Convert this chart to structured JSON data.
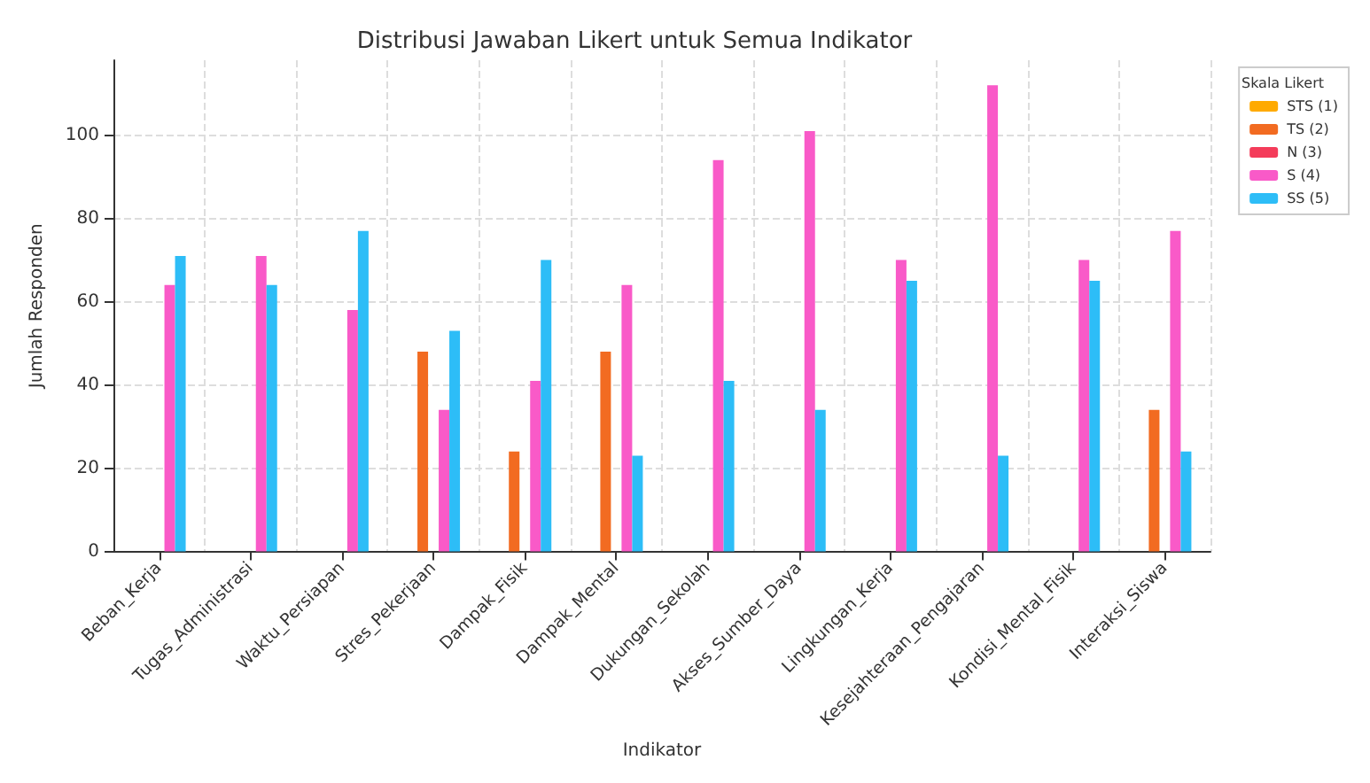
{
  "chart_data": {
    "type": "bar",
    "title": "Distribusi Jawaban Likert untuk Semua Indikator",
    "xlabel": "Indikator",
    "ylabel": "Jumlah Responden",
    "legend_title": "Skala Likert",
    "categories": [
      "Beban_Kerja",
      "Tugas_Administrasi",
      "Waktu_Persiapan",
      "Stres_Pekerjaan",
      "Dampak_Fisik",
      "Dampak_Mental",
      "Dukungan_Sekolah",
      "Akses_Sumber_Daya",
      "Lingkungan_Kerja",
      "Kesejahteraan_Pengajaran",
      "Kondisi_Mental_Fisik",
      "Interaksi_Siswa"
    ],
    "series": [
      {
        "name": "STS (1)",
        "color": "#ffaa00",
        "values": [
          0,
          0,
          0,
          0,
          0,
          0,
          0,
          0,
          0,
          0,
          0,
          0
        ]
      },
      {
        "name": "TS (2)",
        "color": "#f26b21",
        "values": [
          0,
          0,
          0,
          48,
          24,
          48,
          0,
          0,
          0,
          0,
          0,
          34
        ]
      },
      {
        "name": "N (3)",
        "color": "#f43c5a",
        "values": [
          0,
          0,
          0,
          0,
          0,
          0,
          0,
          0,
          0,
          0,
          0,
          0
        ]
      },
      {
        "name": "S (4)",
        "color": "#f95ac8",
        "values": [
          64,
          71,
          58,
          34,
          41,
          64,
          94,
          101,
          70,
          112,
          70,
          77
        ]
      },
      {
        "name": "SS (5)",
        "color": "#2dbdf7",
        "values": [
          71,
          64,
          77,
          53,
          70,
          23,
          41,
          34,
          65,
          23,
          65,
          24
        ]
      }
    ],
    "ylim": [
      0,
      118
    ],
    "yticks": [
      0,
      20,
      40,
      60,
      80,
      100
    ],
    "grid": true,
    "legend": "top right"
  }
}
